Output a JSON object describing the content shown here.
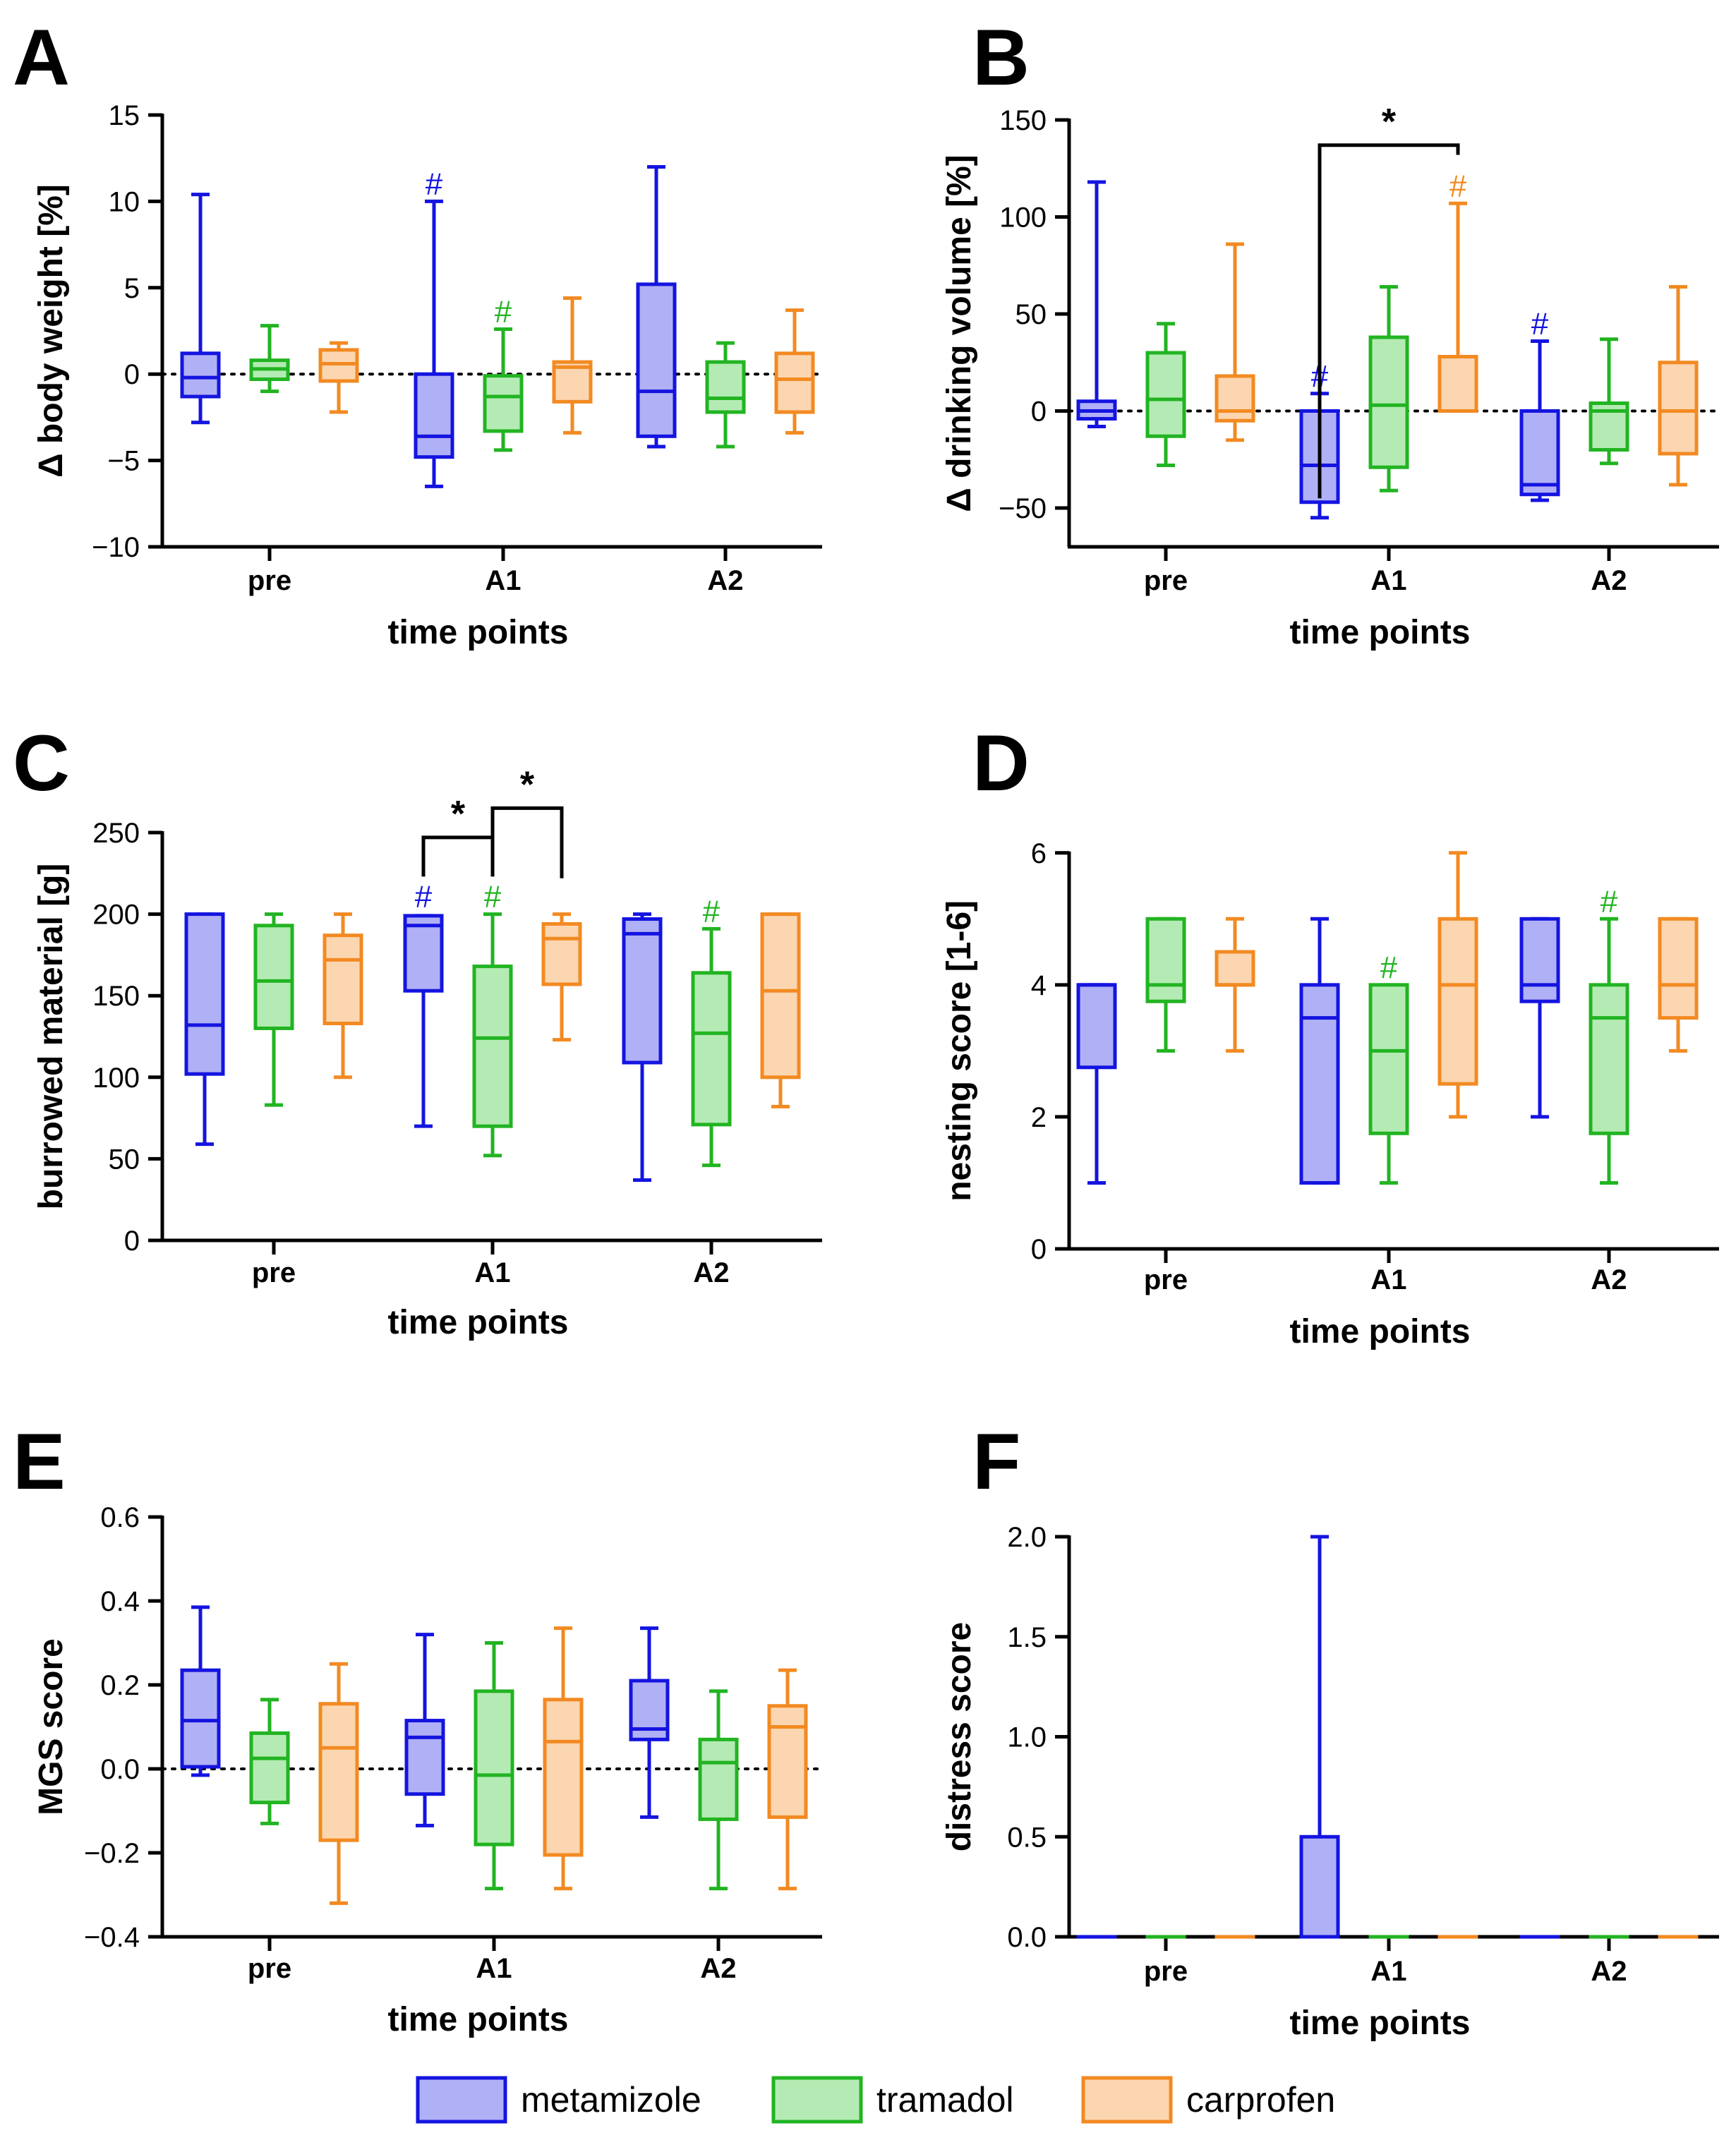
{
  "colors": {
    "metamizole": {
      "stroke": "#1414e0",
      "fill": "#b0b0f6"
    },
    "tramadol": {
      "stroke": "#22b422",
      "fill": "#b4ebb4"
    },
    "carprofen": {
      "stroke": "#f28a22",
      "fill": "#fcd6b0"
    },
    "axis": "#000000"
  },
  "legend": {
    "items": [
      {
        "key": "metamizole",
        "label": "metamizole"
      },
      {
        "key": "tramadol",
        "label": "tramadol"
      },
      {
        "key": "carprofen",
        "label": "carprofen"
      }
    ]
  },
  "chart_data": [
    {
      "panel": "A",
      "type": "box",
      "ylabel": "Δ body weight [%]",
      "xlabel": "time points",
      "categories": [
        "pre",
        "A1",
        "A2"
      ],
      "ylim": [
        -10,
        15
      ],
      "yticks": [
        -10,
        -5,
        0,
        5,
        10,
        15
      ],
      "ytick_labels": [
        "−10",
        "−5",
        "0",
        "5",
        "10",
        "15"
      ],
      "reference_line": 0,
      "series": [
        {
          "name": "metamizole",
          "boxes": [
            {
              "min": -2.8,
              "q1": -1.3,
              "median": -0.2,
              "q3": 1.2,
              "max": 10.4
            },
            {
              "min": -6.5,
              "q1": -4.8,
              "median": -3.6,
              "q3": 0.0,
              "max": 10.0
            },
            {
              "min": -4.2,
              "q1": -3.6,
              "median": -1.0,
              "q3": 5.2,
              "max": 12.0
            }
          ]
        },
        {
          "name": "tramadol",
          "boxes": [
            {
              "min": -1.0,
              "q1": -0.3,
              "median": 0.3,
              "q3": 0.8,
              "max": 2.8
            },
            {
              "min": -4.4,
              "q1": -3.3,
              "median": -1.3,
              "q3": -0.1,
              "max": 2.6
            },
            {
              "min": -4.2,
              "q1": -2.2,
              "median": -1.4,
              "q3": 0.7,
              "max": 1.8
            }
          ]
        },
        {
          "name": "carprofen",
          "boxes": [
            {
              "min": -2.2,
              "q1": -0.4,
              "median": 0.6,
              "q3": 1.4,
              "max": 1.8
            },
            {
              "min": -3.4,
              "q1": -1.6,
              "median": 0.4,
              "q3": 0.7,
              "max": 4.4
            },
            {
              "min": -3.4,
              "q1": -2.2,
              "median": -0.3,
              "q3": 1.2,
              "max": 3.7
            }
          ]
        }
      ],
      "annotations": [
        {
          "text": "#",
          "category": 1,
          "series": 0,
          "value": 10.0
        },
        {
          "text": "#",
          "category": 1,
          "series": 1,
          "value": 2.6
        }
      ],
      "brackets": []
    },
    {
      "panel": "B",
      "type": "box",
      "ylabel": "Δ drinking volume [%]",
      "xlabel": "time points",
      "categories": [
        "pre",
        "A1",
        "A2"
      ],
      "ylim": [
        -70,
        150
      ],
      "yticks": [
        -50,
        0,
        50,
        100,
        150
      ],
      "ytick_labels": [
        "−50",
        "0",
        "50",
        "100",
        "150"
      ],
      "reference_line": 0,
      "series": [
        {
          "name": "metamizole",
          "boxes": [
            {
              "min": -8,
              "q1": -4,
              "median": 0,
              "q3": 5,
              "max": 118
            },
            {
              "min": -55,
              "q1": -47,
              "median": -28,
              "q3": 0,
              "max": 9
            },
            {
              "min": -46,
              "q1": -43,
              "median": -38,
              "q3": 0,
              "max": 36
            }
          ]
        },
        {
          "name": "tramadol",
          "boxes": [
            {
              "min": -28,
              "q1": -13,
              "median": 6,
              "q3": 30,
              "max": 45
            },
            {
              "min": -41,
              "q1": -29,
              "median": 3,
              "q3": 38,
              "max": 64
            },
            {
              "min": -27,
              "q1": -20,
              "median": 0,
              "q3": 4,
              "max": 37
            }
          ]
        },
        {
          "name": "carprofen",
          "boxes": [
            {
              "min": -15,
              "q1": -5,
              "median": 0,
              "q3": 18,
              "max": 86
            },
            {
              "min": 0,
              "q1": 0,
              "median": 0,
              "q3": 28,
              "max": 107
            },
            {
              "min": -38,
              "q1": -22,
              "median": 0,
              "q3": 25,
              "max": 64
            }
          ]
        }
      ],
      "annotations": [
        {
          "text": "#",
          "category": 1,
          "series": 0,
          "value": 9
        },
        {
          "text": "#",
          "category": 1,
          "series": 2,
          "value": 107
        },
        {
          "text": "#",
          "category": 2,
          "series": 0,
          "value": 36
        }
      ],
      "brackets": [
        {
          "text": "*",
          "from": [
            1,
            0
          ],
          "to": [
            1,
            2
          ],
          "value": 137,
          "legs": [
            -45,
            132
          ]
        }
      ]
    },
    {
      "panel": "C",
      "type": "box",
      "ylabel": "burrowed material [g]",
      "xlabel": "time points",
      "categories": [
        "pre",
        "A1",
        "A2"
      ],
      "ylim": [
        0,
        250
      ],
      "yticks": [
        0,
        50,
        100,
        150,
        200,
        250
      ],
      "ytick_labels": [
        "0",
        "50",
        "100",
        "150",
        "200",
        "250"
      ],
      "reference_line": null,
      "series": [
        {
          "name": "metamizole",
          "boxes": [
            {
              "min": 59,
              "q1": 102,
              "median": 132,
              "q3": 200,
              "max": 200
            },
            {
              "min": 70,
              "q1": 153,
              "median": 193,
              "q3": 199,
              "max": 199
            },
            {
              "min": 37,
              "q1": 109,
              "median": 188,
              "q3": 197,
              "max": 200
            }
          ]
        },
        {
          "name": "tramadol",
          "boxes": [
            {
              "min": 83,
              "q1": 130,
              "median": 159,
              "q3": 193,
              "max": 200
            },
            {
              "min": 52,
              "q1": 70,
              "median": 124,
              "q3": 168,
              "max": 200
            },
            {
              "min": 46,
              "q1": 71,
              "median": 127,
              "q3": 164,
              "max": 191
            }
          ]
        },
        {
          "name": "carprofen",
          "boxes": [
            {
              "min": 100,
              "q1": 133,
              "median": 172,
              "q3": 187,
              "max": 200
            },
            {
              "min": 123,
              "q1": 157,
              "median": 185,
              "q3": 194,
              "max": 200
            },
            {
              "min": 82,
              "q1": 100,
              "median": 153,
              "q3": 200,
              "max": 200
            }
          ]
        }
      ],
      "annotations": [
        {
          "text": "#",
          "category": 1,
          "series": 0,
          "value": 200
        },
        {
          "text": "#",
          "category": 1,
          "series": 1,
          "value": 200
        },
        {
          "text": "#",
          "category": 2,
          "series": 1,
          "value": 191
        }
      ],
      "brackets": [
        {
          "text": "*",
          "from": [
            1,
            0
          ],
          "to": [
            1,
            1
          ],
          "value": 247,
          "legs": [
            223,
            223
          ]
        },
        {
          "text": "*",
          "from": [
            1,
            1
          ],
          "to": [
            1,
            2
          ],
          "value": 265,
          "legs": [
            247,
            222
          ]
        }
      ]
    },
    {
      "panel": "D",
      "type": "box",
      "ylabel": "nesting score [1-6]",
      "xlabel": "time points",
      "categories": [
        "pre",
        "A1",
        "A2"
      ],
      "ylim": [
        0,
        6.5
      ],
      "yticks": [
        0,
        2,
        4,
        6
      ],
      "ytick_labels": [
        "0",
        "2",
        "4",
        "6"
      ],
      "reference_line": null,
      "series": [
        {
          "name": "metamizole",
          "boxes": [
            {
              "min": 1.0,
              "q1": 2.75,
              "median": 4.0,
              "q3": 4.0,
              "max": 4.0
            },
            {
              "min": 1.0,
              "q1": 1.0,
              "median": 3.5,
              "q3": 4.0,
              "max": 5.0
            },
            {
              "min": 2.0,
              "q1": 3.75,
              "median": 4.0,
              "q3": 5.0,
              "max": 5.0
            }
          ]
        },
        {
          "name": "tramadol",
          "boxes": [
            {
              "min": 3.0,
              "q1": 3.75,
              "median": 4.0,
              "q3": 5.0,
              "max": 5.0
            },
            {
              "min": 1.0,
              "q1": 1.75,
              "median": 3.0,
              "q3": 4.0,
              "max": 4.0
            },
            {
              "min": 1.0,
              "q1": 1.75,
              "median": 3.5,
              "q3": 4.0,
              "max": 5.0
            }
          ]
        },
        {
          "name": "carprofen",
          "boxes": [
            {
              "min": 3.0,
              "q1": 4.0,
              "median": 4.0,
              "q3": 4.5,
              "max": 5.0
            },
            {
              "min": 2.0,
              "q1": 2.5,
              "median": 4.0,
              "q3": 5.0,
              "max": 6.0
            },
            {
              "min": 3.0,
              "q1": 3.5,
              "median": 4.0,
              "q3": 5.0,
              "max": 5.0
            }
          ]
        }
      ],
      "annotations": [
        {
          "text": "#",
          "category": 1,
          "series": 1,
          "value": 4.0
        },
        {
          "text": "#",
          "category": 2,
          "series": 1,
          "value": 5.0
        }
      ],
      "brackets": []
    },
    {
      "panel": "E",
      "type": "box",
      "ylabel": "MGS score",
      "xlabel": "time points",
      "categories": [
        "pre",
        "A1",
        "A2"
      ],
      "ylim": [
        -0.4,
        0.6
      ],
      "yticks": [
        -0.4,
        -0.2,
        0.0,
        0.2,
        0.4,
        0.6
      ],
      "ytick_labels": [
        "−0.4",
        "−0.2",
        "0.0",
        "0.2",
        "0.4",
        "0.6"
      ],
      "reference_line": 0,
      "series": [
        {
          "name": "metamizole",
          "boxes": [
            {
              "min": -0.015,
              "q1": 0.005,
              "median": 0.115,
              "q3": 0.235,
              "max": 0.385
            },
            {
              "min": -0.135,
              "q1": -0.06,
              "median": 0.075,
              "q3": 0.115,
              "max": 0.32
            },
            {
              "min": -0.115,
              "q1": 0.07,
              "median": 0.095,
              "q3": 0.21,
              "max": 0.335
            }
          ]
        },
        {
          "name": "tramadol",
          "boxes": [
            {
              "min": -0.13,
              "q1": -0.08,
              "median": 0.025,
              "q3": 0.085,
              "max": 0.165
            },
            {
              "min": -0.285,
              "q1": -0.18,
              "median": -0.015,
              "q3": 0.185,
              "max": 0.3
            },
            {
              "min": -0.285,
              "q1": -0.12,
              "median": 0.015,
              "q3": 0.07,
              "max": 0.185
            }
          ]
        },
        {
          "name": "carprofen",
          "boxes": [
            {
              "min": -0.32,
              "q1": -0.17,
              "median": 0.05,
              "q3": 0.155,
              "max": 0.25
            },
            {
              "min": -0.285,
              "q1": -0.205,
              "median": 0.065,
              "q3": 0.165,
              "max": 0.335
            },
            {
              "min": -0.285,
              "q1": -0.115,
              "median": 0.1,
              "q3": 0.15,
              "max": 0.235
            }
          ]
        }
      ],
      "annotations": [],
      "brackets": []
    },
    {
      "panel": "F",
      "type": "box",
      "ylabel": "distress score",
      "xlabel": "time points",
      "categories": [
        "pre",
        "A1",
        "A2"
      ],
      "ylim": [
        0,
        2.0
      ],
      "yticks": [
        0.0,
        0.5,
        1.0,
        1.5,
        2.0
      ],
      "ytick_labels": [
        "0.0",
        "0.5",
        "1.0",
        "1.5",
        "2.0"
      ],
      "reference_line": 0,
      "series": [
        {
          "name": "metamizole",
          "boxes": [
            {
              "min": 0,
              "q1": 0,
              "median": 0,
              "q3": 0,
              "max": 0
            },
            {
              "min": 0,
              "q1": 0,
              "median": 0,
              "q3": 0.5,
              "max": 2.0
            },
            {
              "min": 0,
              "q1": 0,
              "median": 0,
              "q3": 0,
              "max": 0
            }
          ]
        },
        {
          "name": "tramadol",
          "boxes": [
            {
              "min": 0,
              "q1": 0,
              "median": 0,
              "q3": 0,
              "max": 0
            },
            {
              "min": 0,
              "q1": 0,
              "median": 0,
              "q3": 0,
              "max": 0
            },
            {
              "min": 0,
              "q1": 0,
              "median": 0,
              "q3": 0,
              "max": 0
            }
          ]
        },
        {
          "name": "carprofen",
          "boxes": [
            {
              "min": 0,
              "q1": 0,
              "median": 0,
              "q3": 0,
              "max": 0
            },
            {
              "min": 0,
              "q1": 0,
              "median": 0,
              "q3": 0,
              "max": 0
            },
            {
              "min": 0,
              "q1": 0,
              "median": 0,
              "q3": 0,
              "max": 0
            }
          ]
        }
      ],
      "annotations": [],
      "brackets": []
    }
  ]
}
